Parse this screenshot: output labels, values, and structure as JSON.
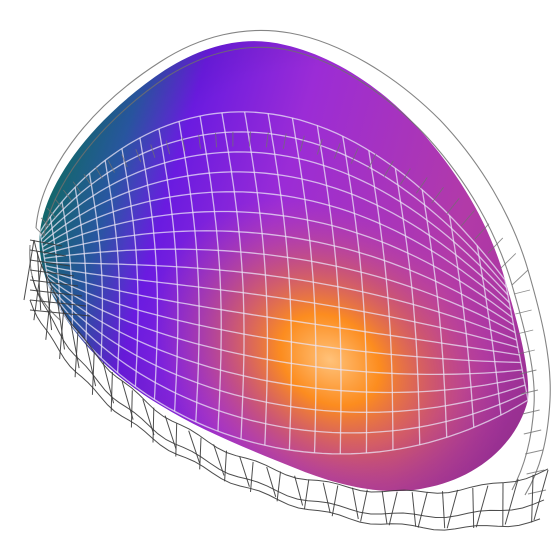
{
  "scene": {
    "subject": "3d-surface-mesh-render",
    "background_color": "#ffffff",
    "wireframe_color": "#3a3a3a",
    "surface_grid_color": "#e9e4f5",
    "surface_colors": {
      "teal": "#127a72",
      "blue_violet": "#6a1be0",
      "purple": "#9b2cd6",
      "magenta": "#b23aa8",
      "orange": "#ff8f1a",
      "light_orange": "#ffc27a"
    }
  }
}
